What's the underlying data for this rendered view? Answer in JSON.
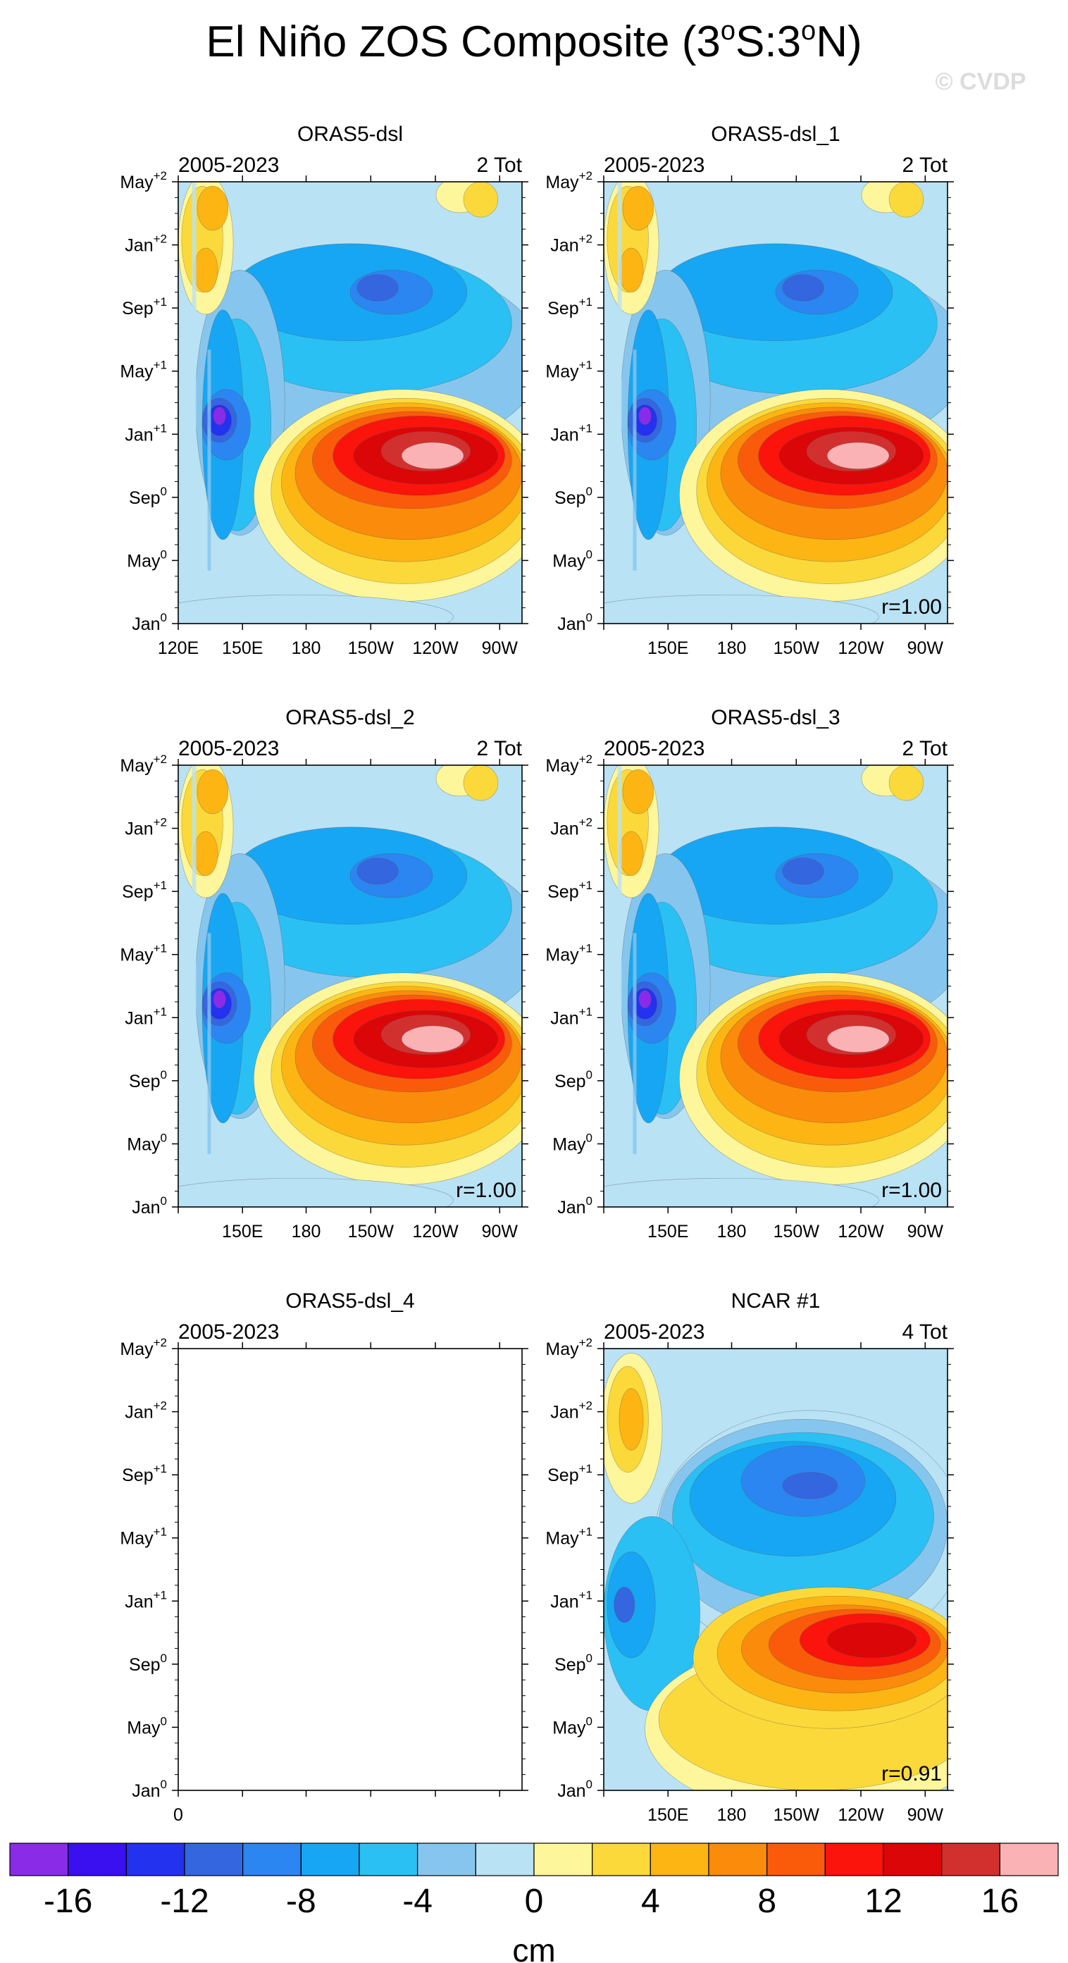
{
  "figure": {
    "title_main": "El Niño ZOS Composite (3",
    "title_o1": "o",
    "title_mid": "S:3",
    "title_o2": "o",
    "title_end": "N)",
    "watermark": "© CVDP"
  },
  "chart_data": [
    {
      "type": "heatmap",
      "title": "ORAS5-dsl",
      "period": "2005-2023",
      "count": "2 Tot",
      "corr": "",
      "pattern": "obs",
      "show_x0": false,
      "show_x120E": true,
      "x_ticks": [
        "120E",
        "150E",
        "180",
        "150W",
        "120W",
        "90W"
      ],
      "y_ticks": [
        {
          "m": "Jan",
          "s": "0"
        },
        {
          "m": "May",
          "s": "0"
        },
        {
          "m": "Sep",
          "s": "0"
        },
        {
          "m": "Jan",
          "s": "+1"
        },
        {
          "m": "May",
          "s": "+1"
        },
        {
          "m": "Sep",
          "s": "+1"
        },
        {
          "m": "Jan",
          "s": "+2"
        },
        {
          "m": "May",
          "s": "+2"
        }
      ],
      "ylim": [
        "Jan0",
        "May+2"
      ],
      "units": "cm",
      "levels_min": -16,
      "levels_max": 16
    },
    {
      "type": "heatmap",
      "title": "ORAS5-dsl_1",
      "period": "2005-2023",
      "count": "2 Tot",
      "corr": "r=1.00",
      "pattern": "obs",
      "show_x0": false,
      "show_x120E": false,
      "x_ticks": [
        "150E",
        "180",
        "150W",
        "120W",
        "90W"
      ],
      "y_ticks": [
        {
          "m": "Jan",
          "s": "0"
        },
        {
          "m": "May",
          "s": "0"
        },
        {
          "m": "Sep",
          "s": "0"
        },
        {
          "m": "Jan",
          "s": "+1"
        },
        {
          "m": "May",
          "s": "+1"
        },
        {
          "m": "Sep",
          "s": "+1"
        },
        {
          "m": "Jan",
          "s": "+2"
        },
        {
          "m": "May",
          "s": "+2"
        }
      ]
    },
    {
      "type": "heatmap",
      "title": "ORAS5-dsl_2",
      "period": "2005-2023",
      "count": "2 Tot",
      "corr": "r=1.00",
      "pattern": "obs",
      "show_x0": false,
      "show_x120E": false,
      "x_ticks": [
        "150E",
        "180",
        "150W",
        "120W",
        "90W"
      ],
      "y_ticks": [
        {
          "m": "Jan",
          "s": "0"
        },
        {
          "m": "May",
          "s": "0"
        },
        {
          "m": "Sep",
          "s": "0"
        },
        {
          "m": "Jan",
          "s": "+1"
        },
        {
          "m": "May",
          "s": "+1"
        },
        {
          "m": "Sep",
          "s": "+1"
        },
        {
          "m": "Jan",
          "s": "+2"
        },
        {
          "m": "May",
          "s": "+2"
        }
      ]
    },
    {
      "type": "heatmap",
      "title": "ORAS5-dsl_3",
      "period": "2005-2023",
      "count": "2 Tot",
      "corr": "r=1.00",
      "pattern": "obs",
      "show_x0": false,
      "show_x120E": false,
      "x_ticks": [
        "150E",
        "180",
        "150W",
        "120W",
        "90W"
      ],
      "y_ticks": [
        {
          "m": "Jan",
          "s": "0"
        },
        {
          "m": "May",
          "s": "0"
        },
        {
          "m": "Sep",
          "s": "0"
        },
        {
          "m": "Jan",
          "s": "+1"
        },
        {
          "m": "May",
          "s": "+1"
        },
        {
          "m": "Sep",
          "s": "+1"
        },
        {
          "m": "Jan",
          "s": "+2"
        },
        {
          "m": "May",
          "s": "+2"
        }
      ]
    },
    {
      "type": "heatmap",
      "title": "ORAS5-dsl_4",
      "period": "2005-2023",
      "count": "",
      "corr": "",
      "pattern": "empty",
      "show_x0": true,
      "show_x120E": false,
      "x_ticks": [],
      "x0_label": "0",
      "y_ticks": [
        {
          "m": "Jan",
          "s": "0"
        },
        {
          "m": "May",
          "s": "0"
        },
        {
          "m": "Sep",
          "s": "0"
        },
        {
          "m": "Jan",
          "s": "+1"
        },
        {
          "m": "May",
          "s": "+1"
        },
        {
          "m": "Sep",
          "s": "+1"
        },
        {
          "m": "Jan",
          "s": "+2"
        },
        {
          "m": "May",
          "s": "+2"
        }
      ]
    },
    {
      "type": "heatmap",
      "title": "NCAR #1",
      "period": "2005-2023",
      "count": "4 Tot",
      "corr": "r=0.91",
      "pattern": "model",
      "show_x0": false,
      "show_x120E": false,
      "x_ticks": [
        "150E",
        "180",
        "150W",
        "120W",
        "90W"
      ],
      "y_ticks": [
        {
          "m": "Jan",
          "s": "0"
        },
        {
          "m": "May",
          "s": "0"
        },
        {
          "m": "Sep",
          "s": "0"
        },
        {
          "m": "Jan",
          "s": "+1"
        },
        {
          "m": "May",
          "s": "+1"
        },
        {
          "m": "Sep",
          "s": "+1"
        },
        {
          "m": "Jan",
          "s": "+2"
        },
        {
          "m": "May",
          "s": "+2"
        }
      ]
    }
  ],
  "colorbar": {
    "colors": [
      "#8a2be8",
      "#3a10f0",
      "#2332ef",
      "#3466e0",
      "#2b86f2",
      "#17a6f3",
      "#2ac0f4",
      "#86c6ee",
      "#b9e2f5",
      "#fef69a",
      "#fbd93a",
      "#fdb513",
      "#fb8b0a",
      "#fa5b0a",
      "#fa140c",
      "#da0608",
      "#d2302e",
      "#fbb2b5"
    ],
    "labels": [
      "-16",
      "-12",
      "-8",
      "-4",
      "0",
      "4",
      "8",
      "12",
      "16"
    ],
    "units": "cm"
  }
}
